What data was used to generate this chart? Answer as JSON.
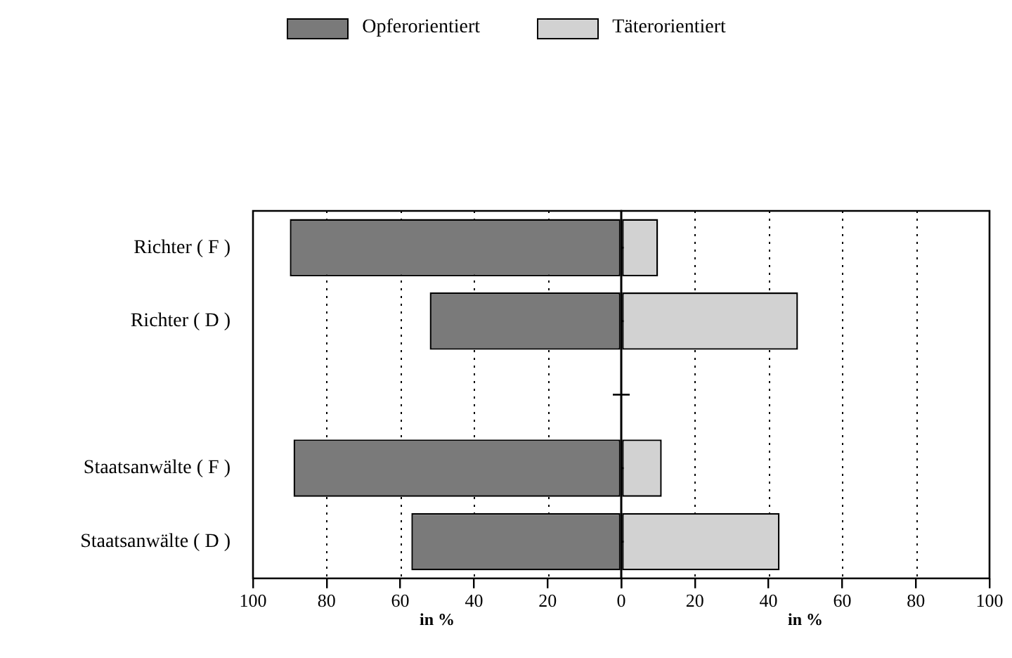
{
  "chart_data": [
    {
      "type": "bar",
      "orientation": "horizontal",
      "categories": [
        "Richter ( F )",
        "Richter ( D )",
        null,
        "Staatsanwälte ( F )",
        "Staatsanwälte ( D )"
      ],
      "series": [
        {
          "name": "Opferorientiert",
          "color": "#7a7a7a",
          "values": [
            90,
            52,
            null,
            89,
            57
          ]
        }
      ],
      "xlabel": "in %",
      "xlim": [
        100,
        0
      ],
      "xticks": [
        100,
        80,
        60,
        40,
        20,
        0
      ],
      "grid": "x",
      "legend": "top"
    },
    {
      "type": "bar",
      "orientation": "horizontal",
      "categories": [
        null,
        null,
        null,
        null,
        null
      ],
      "series": [
        {
          "name": "Täterorientiert",
          "color": "#d2d2d2",
          "values": [
            10,
            48,
            null,
            11,
            43
          ]
        }
      ],
      "xlabel": "in %",
      "xlim": [
        0,
        100
      ],
      "xticks": [
        {
          "value": 0,
          "label": null
        },
        20,
        40,
        60,
        80,
        100
      ],
      "grid": "x",
      "legend": "top",
      "tick_labels": "x"
    }
  ]
}
